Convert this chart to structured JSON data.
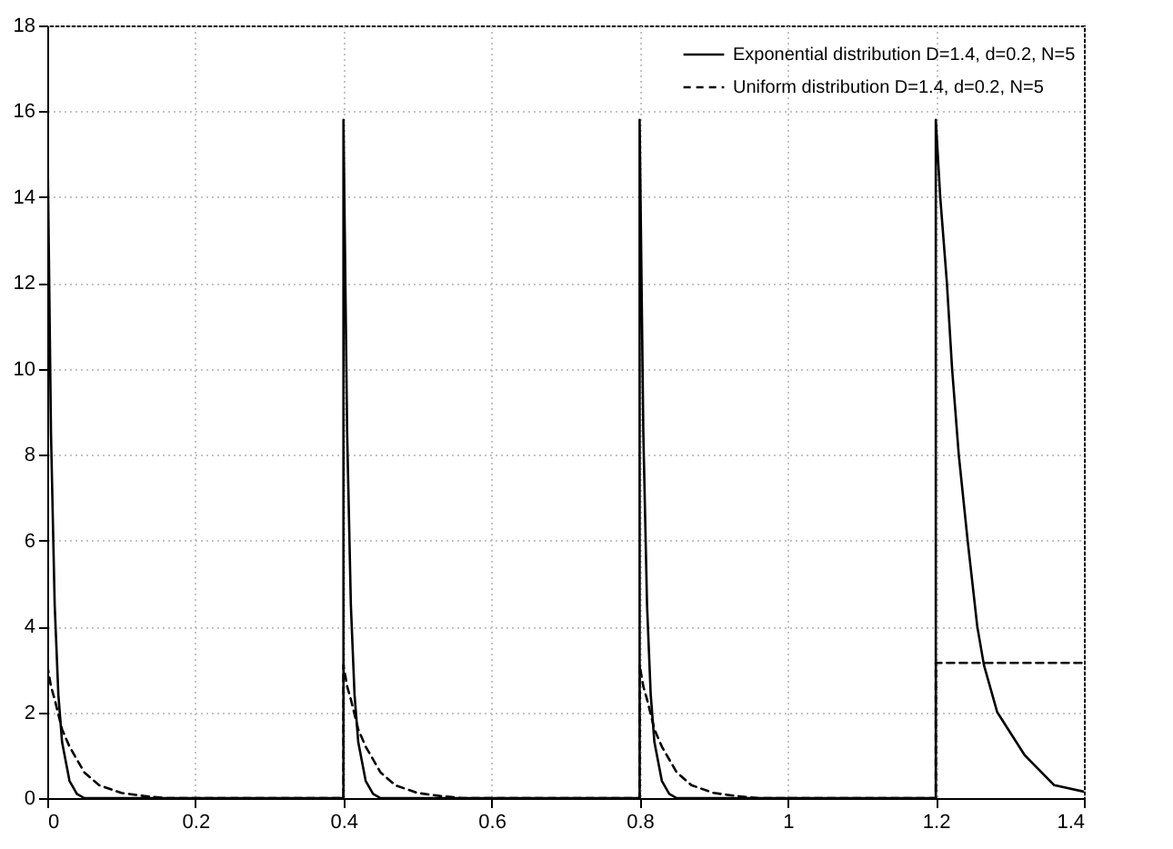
{
  "chart_data": {
    "type": "line",
    "xlim": [
      0,
      1.4
    ],
    "ylim": [
      0,
      18
    ],
    "xticks": [
      0,
      0.2,
      0.4,
      0.6,
      0.8,
      1,
      1.2,
      1.4
    ],
    "yticks": [
      0,
      2,
      4,
      6,
      8,
      10,
      12,
      14,
      16,
      18
    ],
    "grid": true,
    "legend": "top right",
    "marker": "none",
    "series": [
      {
        "name": "Exponential distribution D=1.4, d=0.2, N=5",
        "color": "#000000",
        "line_style": "solid",
        "x": [
          0,
          0,
          0.005,
          0.01,
          0.015,
          0.02,
          0.03,
          0.04,
          0.05,
          0.4,
          0.4,
          0.405,
          0.41,
          0.415,
          0.42,
          0.43,
          0.44,
          0.45,
          0.8,
          0.8,
          0.805,
          0.81,
          0.815,
          0.82,
          0.83,
          0.84,
          0.85,
          1.2,
          1.2,
          1.206,
          1.215,
          1.222,
          1.231,
          1.243,
          1.256,
          1.265,
          1.283,
          1.32,
          1.36,
          1.4
        ],
        "values": [
          0,
          15.8,
          8.5,
          4.5,
          2.4,
          1.3,
          0.4,
          0.1,
          0,
          0,
          15.8,
          8.5,
          4.5,
          2.4,
          1.3,
          0.4,
          0.1,
          0,
          0,
          15.8,
          8.5,
          4.5,
          2.4,
          1.3,
          0.4,
          0.1,
          0,
          0,
          15.8,
          14,
          12,
          10,
          8,
          6,
          4,
          3.1,
          2,
          1,
          0.3,
          0.15
        ]
      },
      {
        "name": "Uniform distribution D=1.4, d=0.2, N=5",
        "color": "#000000",
        "line_style": "dashed",
        "x": [
          0,
          0.005,
          0.01,
          0.02,
          0.03,
          0.05,
          0.07,
          0.1,
          0.13,
          0.16,
          0.4,
          0.4,
          0.405,
          0.41,
          0.42,
          0.43,
          0.45,
          0.47,
          0.5,
          0.53,
          0.56,
          0.8,
          0.8,
          0.805,
          0.81,
          0.82,
          0.83,
          0.85,
          0.87,
          0.9,
          0.93,
          0.96,
          1.2,
          1.2,
          1.4
        ],
        "values": [
          3.1,
          2.6,
          2.3,
          1.6,
          1.2,
          0.6,
          0.3,
          0.12,
          0.05,
          0,
          0,
          3.1,
          2.6,
          2.3,
          1.6,
          1.2,
          0.6,
          0.3,
          0.12,
          0.05,
          0,
          0,
          3.1,
          2.6,
          2.3,
          1.6,
          1.2,
          0.6,
          0.3,
          0.12,
          0.05,
          0,
          0,
          3.15,
          3.15
        ]
      }
    ]
  }
}
